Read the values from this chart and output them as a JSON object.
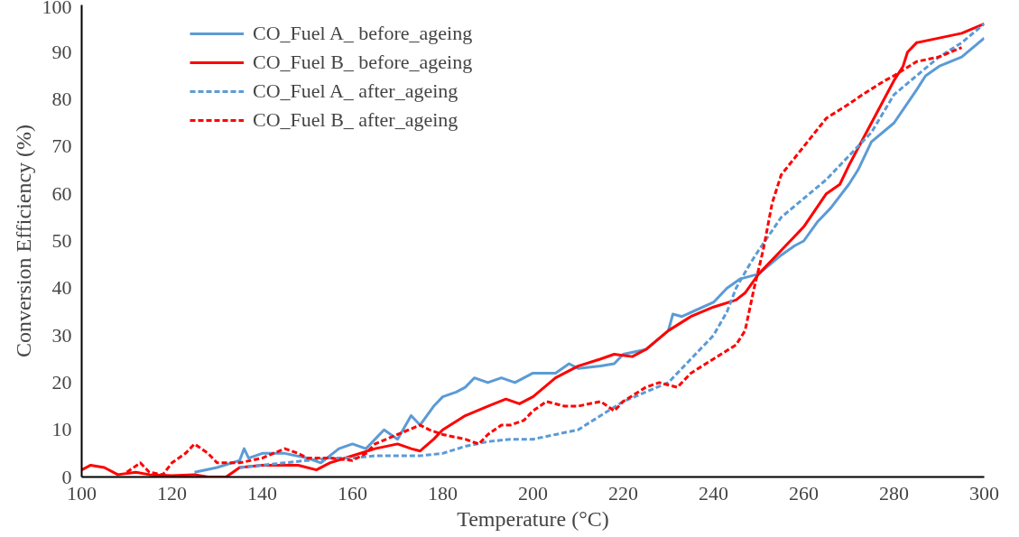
{
  "chart_data": {
    "type": "line",
    "xlabel": "Temperature (°C)",
    "ylabel": "Conversion Efficiency (%)",
    "xlim": [
      100,
      300
    ],
    "xticks": [
      100,
      120,
      140,
      160,
      180,
      200,
      220,
      240,
      260,
      280,
      300
    ],
    "ylim": [
      0,
      100
    ],
    "yticks": [
      0,
      10,
      20,
      30,
      40,
      50,
      60,
      70,
      80,
      90,
      100
    ],
    "grid": false,
    "legend": "top left",
    "marker": "none",
    "series": [
      {
        "name": "CO_Fuel A_ before_ageing",
        "color": "#5b9bd5",
        "line_style": "solid",
        "x": [
          125,
          130,
          135,
          136,
          137,
          140,
          145,
          150,
          153,
          157,
          160,
          163,
          167,
          170,
          173,
          175,
          178,
          180,
          183,
          185,
          187,
          190,
          193,
          196,
          200,
          205,
          208,
          210,
          215,
          218,
          220,
          225,
          230,
          231,
          233,
          240,
          243,
          246,
          250,
          255,
          258,
          260,
          263,
          266,
          270,
          272,
          275,
          280,
          285,
          287,
          290,
          295,
          300
        ],
        "values": [
          1,
          2,
          3.5,
          6,
          4,
          5,
          5,
          4,
          3,
          6,
          7,
          6,
          10,
          8,
          13,
          11,
          15,
          17,
          18,
          19,
          21,
          20,
          21,
          20,
          22,
          22,
          24,
          23,
          23.5,
          24,
          26,
          27,
          31,
          34.5,
          34,
          37,
          40,
          42,
          43,
          47,
          49,
          50,
          54,
          57,
          62,
          65,
          71,
          75,
          82,
          85,
          87,
          89,
          93
        ]
      },
      {
        "name": "CO_Fuel B_ before_ageing",
        "color": "#ff0000",
        "line_style": "solid",
        "x": [
          100,
          102,
          105,
          108,
          112,
          115,
          120,
          125,
          128,
          132,
          135,
          140,
          145,
          148,
          152,
          155,
          160,
          165,
          170,
          173,
          175,
          178,
          180,
          185,
          190,
          194,
          197,
          200,
          205,
          210,
          215,
          218,
          222,
          225,
          230,
          235,
          240,
          245,
          247,
          250,
          255,
          260,
          265,
          268,
          270,
          275,
          280,
          282,
          283,
          285,
          290,
          295,
          300
        ],
        "values": [
          1.5,
          2.5,
          2,
          0.5,
          1,
          0.5,
          0.3,
          0.5,
          0,
          0,
          2,
          2.5,
          2.5,
          2.5,
          1.5,
          3,
          4.5,
          6,
          7,
          6,
          5.5,
          8,
          10,
          13,
          15,
          16.5,
          15.5,
          17,
          21,
          23.5,
          25,
          26,
          25.5,
          27,
          31,
          34,
          36,
          37.5,
          39,
          43,
          48,
          53,
          60,
          62,
          66,
          75,
          84,
          87,
          90,
          92,
          93,
          94,
          96
        ]
      },
      {
        "name": "CO_Fuel A_ after_ageing",
        "color": "#5b9bd5",
        "line_style": "dashed",
        "x": [
          135,
          140,
          145,
          150,
          155,
          160,
          165,
          170,
          175,
          180,
          185,
          190,
          195,
          200,
          205,
          210,
          215,
          220,
          225,
          230,
          235,
          240,
          243,
          245,
          248,
          250,
          255,
          260,
          265,
          270,
          275,
          280,
          285,
          290,
          295,
          300
        ],
        "values": [
          2,
          2.5,
          3,
          3.5,
          4,
          4,
          4.5,
          4.5,
          4.5,
          5,
          6.5,
          7.5,
          8,
          8,
          9,
          10,
          13,
          16,
          18,
          20,
          25,
          30,
          35,
          40,
          45,
          48,
          55,
          59,
          63,
          68,
          73,
          81,
          85,
          89,
          92,
          96
        ]
      },
      {
        "name": "CO_Fuel B_ after_ageing",
        "color": "#ff0000",
        "line_style": "dashed",
        "x": [
          110,
          113,
          115,
          118,
          120,
          123,
          125,
          128,
          130,
          135,
          140,
          145,
          148,
          150,
          155,
          160,
          163,
          165,
          170,
          175,
          177,
          180,
          185,
          188,
          190,
          193,
          195,
          198,
          200,
          203,
          207,
          210,
          215,
          218,
          220,
          225,
          228,
          232,
          235,
          240,
          245,
          247,
          249,
          251,
          253,
          255,
          260,
          265,
          270,
          273,
          278,
          280,
          285,
          290,
          295
        ],
        "values": [
          1,
          3,
          1,
          0.5,
          3,
          5,
          7,
          5,
          3,
          3,
          4,
          6,
          5,
          4,
          4,
          3.5,
          5,
          7,
          9,
          11,
          10,
          9,
          8,
          7,
          9,
          11,
          11,
          12,
          14,
          16,
          15,
          15,
          16,
          14,
          16,
          19,
          20,
          19,
          22,
          25,
          28,
          31,
          40,
          48,
          58,
          64,
          70,
          76,
          79,
          81,
          84,
          85,
          88,
          89,
          91
        ]
      }
    ]
  }
}
